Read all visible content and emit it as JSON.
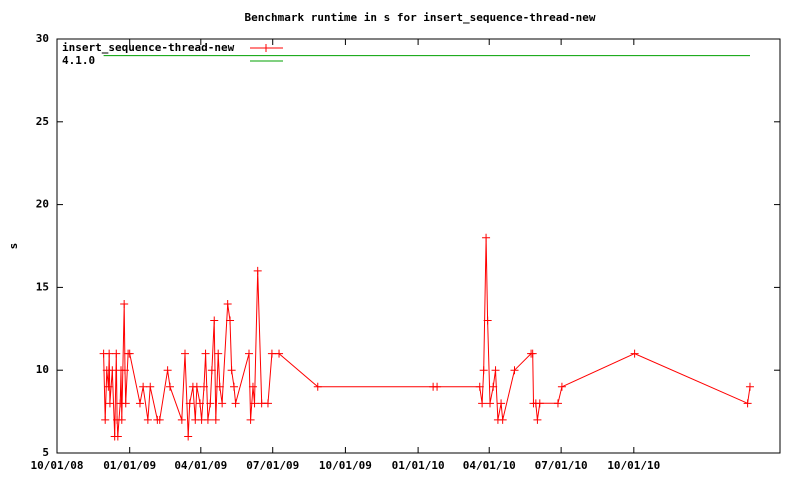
{
  "chart_data": {
    "type": "line",
    "title": "Benchmark runtime in s for insert_sequence-thread-new",
    "y_label": "s",
    "xlim": [
      "2008-10-01",
      "2011-04-04"
    ],
    "xticks": [
      {
        "value": "2008-10-01",
        "label": "10/01/08"
      },
      {
        "value": "2009-01-01",
        "label": "01/01/09"
      },
      {
        "value": "2009-04-01",
        "label": "04/01/09"
      },
      {
        "value": "2009-07-01",
        "label": "07/01/09"
      },
      {
        "value": "2009-10-01",
        "label": "10/01/09"
      },
      {
        "value": "2010-01-01",
        "label": "01/01/10"
      },
      {
        "value": "2010-04-01",
        "label": "04/01/10"
      },
      {
        "value": "2010-07-01",
        "label": "07/01/10"
      },
      {
        "value": "2010-10-01",
        "label": "10/01/10"
      }
    ],
    "ylim": [
      5,
      30
    ],
    "yticks": [
      5,
      10,
      15,
      20,
      25,
      30
    ],
    "legend": "top-left",
    "series": [
      {
        "name": "insert_sequence-thread-new",
        "color": "#ff0000",
        "markers": true,
        "x": [
          "2008-11-29",
          "2008-12-01",
          "2008-12-03",
          "2008-12-05",
          "2008-12-06",
          "2008-12-07",
          "2008-12-10",
          "2008-12-13",
          "2008-12-15",
          "2008-12-16",
          "2008-12-17",
          "2008-12-20",
          "2008-12-21",
          "2008-12-22",
          "2008-12-25",
          "2008-12-26",
          "2008-12-27",
          "2008-12-30",
          "2009-01-01",
          "2009-01-14",
          "2009-01-18",
          "2009-01-24",
          "2009-01-27",
          "2009-02-05",
          "2009-02-08",
          "2009-02-18",
          "2009-02-21",
          "2009-03-08",
          "2009-03-12",
          "2009-03-16",
          "2009-03-18",
          "2009-03-22",
          "2009-03-25",
          "2009-03-27",
          "2009-03-31",
          "2009-04-02",
          "2009-04-05",
          "2009-04-07",
          "2009-04-10",
          "2009-04-13",
          "2009-04-15",
          "2009-04-18",
          "2009-04-20",
          "2009-04-23",
          "2009-04-25",
          "2009-04-28",
          "2009-05-05",
          "2009-05-08",
          "2009-05-10",
          "2009-05-13",
          "2009-05-15",
          "2009-06-01",
          "2009-06-03",
          "2009-06-06",
          "2009-06-08",
          "2009-06-12",
          "2009-06-17",
          "2009-06-25",
          "2009-06-30",
          "2009-07-09",
          "2009-08-27",
          "2010-01-20",
          "2010-01-25",
          "2010-03-20",
          "2010-03-23",
          "2010-03-25",
          "2010-03-28",
          "2010-03-30",
          "2010-04-02",
          "2010-04-06",
          "2010-04-09",
          "2010-04-12",
          "2010-04-16",
          "2010-04-18",
          "2010-05-03",
          "2010-05-24",
          "2010-05-26",
          "2010-05-27",
          "2010-05-30",
          "2010-06-01",
          "2010-06-04",
          "2010-06-27",
          "2010-07-02",
          "2010-10-02",
          "2011-02-22",
          "2011-02-25"
        ],
        "values": [
          11,
          7,
          10,
          9,
          11,
          8,
          10,
          6,
          11,
          7,
          6,
          8,
          10,
          7,
          14,
          10,
          8,
          11,
          11,
          8,
          9,
          7,
          9,
          7,
          7,
          10,
          9,
          7,
          11,
          6,
          8,
          9,
          7,
          9,
          8,
          7,
          9,
          11,
          7,
          8,
          10,
          13,
          7,
          11,
          9,
          8,
          14,
          13,
          10,
          9,
          8,
          11,
          7,
          9,
          8,
          16,
          8,
          8,
          11,
          11,
          9,
          9,
          9,
          9,
          8,
          10,
          18,
          13,
          8,
          9,
          10,
          7,
          8,
          7,
          10,
          11,
          11,
          8,
          8,
          7,
          8,
          8,
          9,
          11,
          8,
          9
        ]
      },
      {
        "name": "4.1.0",
        "color": "#00a000",
        "markers": false,
        "x": [
          "2008-11-29",
          "2011-02-25"
        ],
        "values": [
          29,
          29
        ]
      }
    ]
  }
}
